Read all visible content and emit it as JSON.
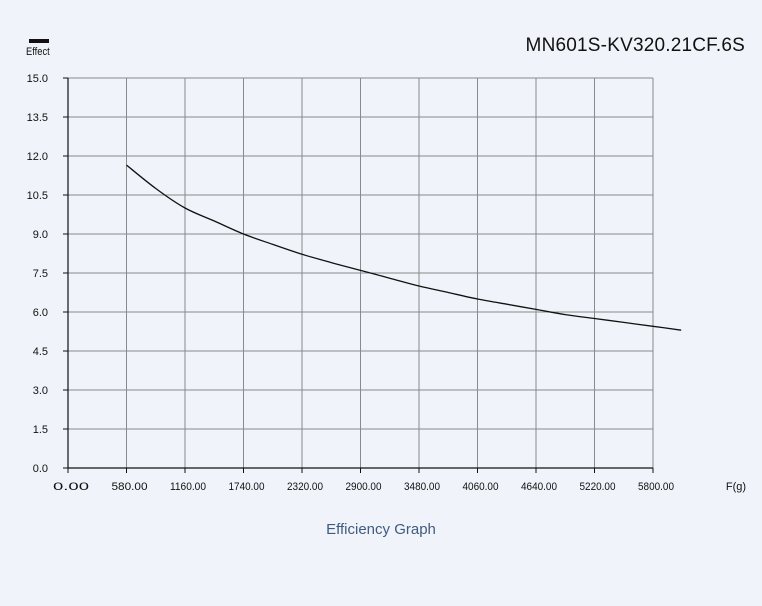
{
  "legend": {
    "label": "Effect",
    "color": "#111111"
  },
  "title": "MN601S-KV320.21CF.6S",
  "caption": "Efficiency Graph",
  "chart_data": {
    "type": "line",
    "title": "MN601S-KV320.21CF.6S",
    "xlabel": "F(g)",
    "ylabel": "",
    "xlim": [
      0,
      5800
    ],
    "ylim": [
      0,
      15
    ],
    "x_ticks": [
      "0.00",
      "580.00",
      "1160.00",
      "1740.00",
      "2320.00",
      "2900.00",
      "3480.00",
      "4060.00",
      "4640.00",
      "5220.00",
      "5800.00"
    ],
    "y_ticks": [
      "0.0",
      "1.5",
      "3.0",
      "4.5",
      "6.0",
      "7.5",
      "9.0",
      "10.5",
      "12.0",
      "13.5",
      "15.0"
    ],
    "grid": true,
    "legend_position": "top-left",
    "series": [
      {
        "name": "Effect",
        "color": "#111111",
        "x": [
          580,
          870,
          1160,
          1450,
          1740,
          2030,
          2320,
          2610,
          2900,
          3190,
          3480,
          3770,
          4060,
          4350,
          4640,
          4930,
          5220,
          5510,
          5800,
          6080
        ],
        "y": [
          11.65,
          10.75,
          10.0,
          9.5,
          9.0,
          8.6,
          8.22,
          7.9,
          7.6,
          7.3,
          7.0,
          6.75,
          6.5,
          6.3,
          6.1,
          5.9,
          5.75,
          5.6,
          5.45,
          5.3
        ]
      }
    ]
  }
}
